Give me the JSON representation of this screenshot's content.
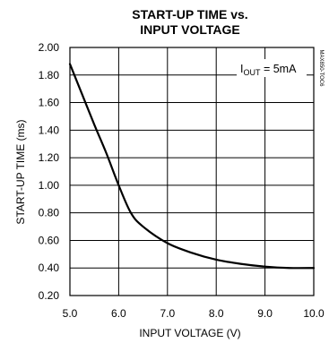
{
  "chart_data": {
    "type": "line",
    "title_line1": "START-UP TIME vs.",
    "title_line2": "INPUT VOLTAGE",
    "xlabel": "INPUT VOLTAGE (V)",
    "ylabel": "START-UP TIME (ms)",
    "xlim": [
      5.0,
      10.0
    ],
    "ylim": [
      0.2,
      2.0
    ],
    "x_ticks": [
      "5.0",
      "6.0",
      "7.0",
      "8.0",
      "9.0",
      "10.0"
    ],
    "y_ticks": [
      "0.20",
      "0.40",
      "0.60",
      "0.80",
      "1.00",
      "1.20",
      "1.40",
      "1.60",
      "1.80",
      "2.00"
    ],
    "grid": true,
    "annotation": {
      "main": "I",
      "sub": "OUT",
      "rest": " = 5mA"
    },
    "side_label": "MAX850-TOC6",
    "series": [
      {
        "x": [
          5.0,
          5.25,
          5.5,
          5.75,
          6.0,
          6.25,
          6.5,
          7.0,
          7.5,
          8.0,
          8.5,
          9.0,
          9.5,
          10.0
        ],
        "y": [
          1.88,
          1.66,
          1.44,
          1.23,
          1.0,
          0.8,
          0.7,
          0.58,
          0.51,
          0.46,
          0.43,
          0.41,
          0.4,
          0.4
        ]
      }
    ]
  }
}
